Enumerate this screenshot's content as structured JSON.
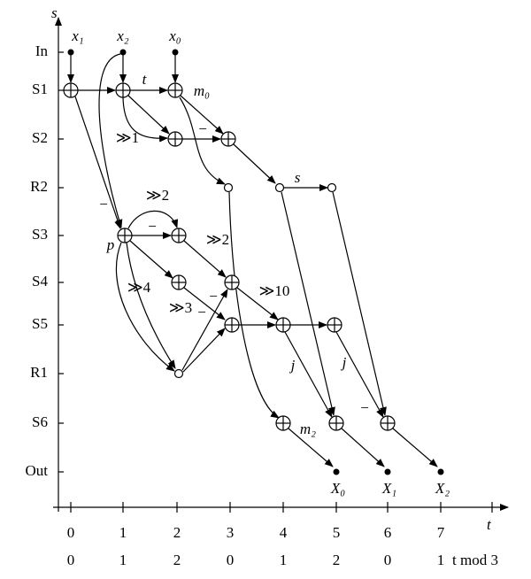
{
  "axes": {
    "y_label": "s",
    "x_label": "t",
    "mod_label": "t mod 3"
  },
  "rows": [
    "In",
    "S1",
    "S2",
    "R2",
    "S3",
    "S4",
    "S5",
    "R1",
    "S6",
    "Out"
  ],
  "t_ticks": [
    0,
    1,
    2,
    3,
    4,
    5,
    6,
    7
  ],
  "mod_ticks": [
    0,
    1,
    2,
    0,
    1,
    2,
    0,
    1
  ],
  "node_labels": [
    "x₁",
    "x₂",
    "x₀",
    "m₀",
    "p",
    "m₂",
    "X₀",
    "X₁",
    "X₂"
  ],
  "edge_labels": [
    "t",
    "≫1",
    "−",
    "s",
    "−",
    "≫2",
    "−",
    "≫2",
    "≫4",
    "≫3",
    "−",
    "−",
    "≫10",
    "j",
    "j",
    "−"
  ]
}
